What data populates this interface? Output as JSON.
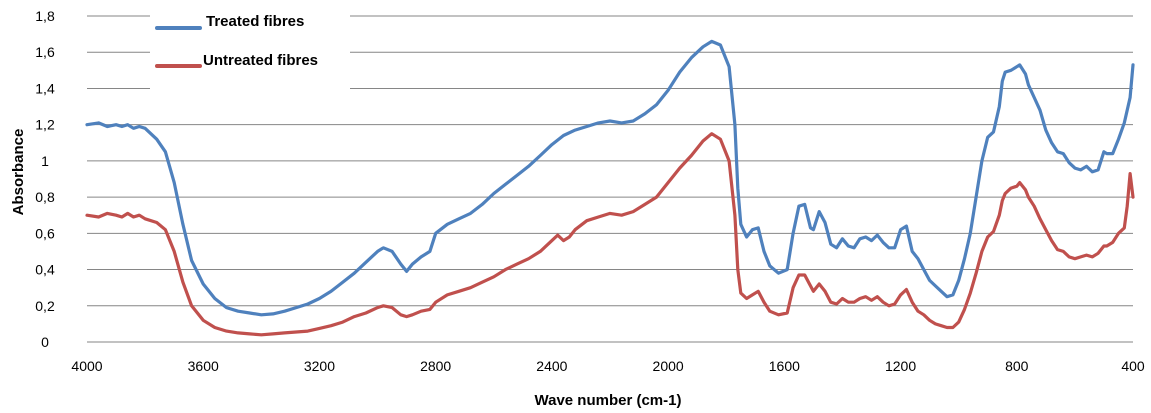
{
  "chart_data": {
    "type": "line",
    "xlabel": "Wave number (cm-1)",
    "ylabel": "Absorbance",
    "xlim": [
      4000,
      400
    ],
    "ylim": [
      0,
      1.8
    ],
    "x_ticks": [
      "4000",
      "3600",
      "3200",
      "2800",
      "2400",
      "2000",
      "1600",
      "1200",
      "800",
      "400"
    ],
    "y_ticks": [
      "0",
      "0,2",
      "0,4",
      "0,6",
      "0,8",
      "1",
      "1,2",
      "1,4",
      "1,6",
      "1,8"
    ],
    "grid": "horizontal",
    "legend_position": "top-left",
    "series": [
      {
        "name": "Treated fibres",
        "color": "#4f81bd",
        "points": [
          [
            4000,
            1.2
          ],
          [
            3960,
            1.21
          ],
          [
            3930,
            1.19
          ],
          [
            3900,
            1.2
          ],
          [
            3880,
            1.19
          ],
          [
            3860,
            1.2
          ],
          [
            3840,
            1.18
          ],
          [
            3820,
            1.19
          ],
          [
            3800,
            1.18
          ],
          [
            3760,
            1.12
          ],
          [
            3730,
            1.05
          ],
          [
            3700,
            0.88
          ],
          [
            3670,
            0.65
          ],
          [
            3640,
            0.45
          ],
          [
            3600,
            0.32
          ],
          [
            3560,
            0.24
          ],
          [
            3520,
            0.19
          ],
          [
            3480,
            0.17
          ],
          [
            3440,
            0.16
          ],
          [
            3400,
            0.15
          ],
          [
            3360,
            0.155
          ],
          [
            3320,
            0.17
          ],
          [
            3280,
            0.19
          ],
          [
            3240,
            0.21
          ],
          [
            3200,
            0.24
          ],
          [
            3160,
            0.28
          ],
          [
            3120,
            0.33
          ],
          [
            3080,
            0.38
          ],
          [
            3040,
            0.44
          ],
          [
            3000,
            0.5
          ],
          [
            2980,
            0.52
          ],
          [
            2950,
            0.5
          ],
          [
            2920,
            0.43
          ],
          [
            2900,
            0.39
          ],
          [
            2880,
            0.43
          ],
          [
            2850,
            0.47
          ],
          [
            2820,
            0.5
          ],
          [
            2800,
            0.6
          ],
          [
            2760,
            0.65
          ],
          [
            2720,
            0.68
          ],
          [
            2680,
            0.71
          ],
          [
            2640,
            0.76
          ],
          [
            2600,
            0.82
          ],
          [
            2560,
            0.87
          ],
          [
            2520,
            0.92
          ],
          [
            2480,
            0.97
          ],
          [
            2440,
            1.03
          ],
          [
            2400,
            1.09
          ],
          [
            2360,
            1.14
          ],
          [
            2320,
            1.17
          ],
          [
            2280,
            1.19
          ],
          [
            2240,
            1.21
          ],
          [
            2200,
            1.22
          ],
          [
            2160,
            1.21
          ],
          [
            2120,
            1.22
          ],
          [
            2080,
            1.26
          ],
          [
            2040,
            1.31
          ],
          [
            2000,
            1.39
          ],
          [
            1960,
            1.49
          ],
          [
            1920,
            1.57
          ],
          [
            1880,
            1.63
          ],
          [
            1850,
            1.66
          ],
          [
            1820,
            1.64
          ],
          [
            1790,
            1.52
          ],
          [
            1770,
            1.2
          ],
          [
            1760,
            0.85
          ],
          [
            1750,
            0.65
          ],
          [
            1730,
            0.58
          ],
          [
            1710,
            0.62
          ],
          [
            1690,
            0.63
          ],
          [
            1670,
            0.5
          ],
          [
            1650,
            0.42
          ],
          [
            1620,
            0.38
          ],
          [
            1590,
            0.4
          ],
          [
            1570,
            0.6
          ],
          [
            1550,
            0.75
          ],
          [
            1530,
            0.76
          ],
          [
            1510,
            0.63
          ],
          [
            1500,
            0.62
          ],
          [
            1480,
            0.72
          ],
          [
            1460,
            0.66
          ],
          [
            1440,
            0.54
          ],
          [
            1420,
            0.52
          ],
          [
            1400,
            0.57
          ],
          [
            1380,
            0.53
          ],
          [
            1360,
            0.52
          ],
          [
            1340,
            0.57
          ],
          [
            1320,
            0.58
          ],
          [
            1300,
            0.56
          ],
          [
            1280,
            0.59
          ],
          [
            1260,
            0.55
          ],
          [
            1240,
            0.52
          ],
          [
            1220,
            0.52
          ],
          [
            1200,
            0.62
          ],
          [
            1180,
            0.64
          ],
          [
            1160,
            0.5
          ],
          [
            1140,
            0.46
          ],
          [
            1120,
            0.4
          ],
          [
            1100,
            0.34
          ],
          [
            1080,
            0.31
          ],
          [
            1060,
            0.28
          ],
          [
            1040,
            0.25
          ],
          [
            1020,
            0.26
          ],
          [
            1000,
            0.34
          ],
          [
            980,
            0.46
          ],
          [
            960,
            0.6
          ],
          [
            940,
            0.8
          ],
          [
            920,
            1.0
          ],
          [
            900,
            1.13
          ],
          [
            880,
            1.16
          ],
          [
            860,
            1.3
          ],
          [
            850,
            1.44
          ],
          [
            840,
            1.49
          ],
          [
            820,
            1.5
          ],
          [
            800,
            1.52
          ],
          [
            790,
            1.53
          ],
          [
            770,
            1.48
          ],
          [
            760,
            1.42
          ],
          [
            740,
            1.35
          ],
          [
            720,
            1.28
          ],
          [
            700,
            1.17
          ],
          [
            680,
            1.1
          ],
          [
            660,
            1.05
          ],
          [
            640,
            1.04
          ],
          [
            620,
            0.99
          ],
          [
            600,
            0.96
          ],
          [
            580,
            0.95
          ],
          [
            560,
            0.97
          ],
          [
            540,
            0.94
          ],
          [
            520,
            0.95
          ],
          [
            500,
            1.05
          ],
          [
            490,
            1.04
          ],
          [
            470,
            1.04
          ],
          [
            450,
            1.12
          ],
          [
            430,
            1.21
          ],
          [
            410,
            1.35
          ],
          [
            400,
            1.53
          ]
        ]
      },
      {
        "name": "Untreated fibres",
        "color": "#c0504d",
        "points": [
          [
            4000,
            0.7
          ],
          [
            3960,
            0.69
          ],
          [
            3930,
            0.71
          ],
          [
            3900,
            0.7
          ],
          [
            3880,
            0.69
          ],
          [
            3860,
            0.71
          ],
          [
            3840,
            0.69
          ],
          [
            3820,
            0.7
          ],
          [
            3800,
            0.68
          ],
          [
            3760,
            0.66
          ],
          [
            3730,
            0.62
          ],
          [
            3700,
            0.5
          ],
          [
            3670,
            0.33
          ],
          [
            3640,
            0.2
          ],
          [
            3600,
            0.12
          ],
          [
            3560,
            0.08
          ],
          [
            3520,
            0.06
          ],
          [
            3480,
            0.05
          ],
          [
            3440,
            0.045
          ],
          [
            3400,
            0.04
          ],
          [
            3360,
            0.045
          ],
          [
            3320,
            0.05
          ],
          [
            3280,
            0.055
          ],
          [
            3240,
            0.06
          ],
          [
            3200,
            0.075
          ],
          [
            3160,
            0.09
          ],
          [
            3120,
            0.11
          ],
          [
            3080,
            0.14
          ],
          [
            3040,
            0.16
          ],
          [
            3000,
            0.19
          ],
          [
            2980,
            0.2
          ],
          [
            2950,
            0.19
          ],
          [
            2920,
            0.15
          ],
          [
            2900,
            0.14
          ],
          [
            2880,
            0.15
          ],
          [
            2850,
            0.17
          ],
          [
            2820,
            0.18
          ],
          [
            2800,
            0.22
          ],
          [
            2760,
            0.26
          ],
          [
            2720,
            0.28
          ],
          [
            2680,
            0.3
          ],
          [
            2640,
            0.33
          ],
          [
            2600,
            0.36
          ],
          [
            2560,
            0.4
          ],
          [
            2520,
            0.43
          ],
          [
            2480,
            0.46
          ],
          [
            2440,
            0.5
          ],
          [
            2400,
            0.56
          ],
          [
            2380,
            0.59
          ],
          [
            2360,
            0.56
          ],
          [
            2340,
            0.58
          ],
          [
            2320,
            0.62
          ],
          [
            2280,
            0.67
          ],
          [
            2240,
            0.69
          ],
          [
            2200,
            0.71
          ],
          [
            2160,
            0.7
          ],
          [
            2120,
            0.72
          ],
          [
            2080,
            0.76
          ],
          [
            2040,
            0.8
          ],
          [
            2000,
            0.88
          ],
          [
            1960,
            0.96
          ],
          [
            1920,
            1.03
          ],
          [
            1880,
            1.11
          ],
          [
            1850,
            1.15
          ],
          [
            1820,
            1.12
          ],
          [
            1790,
            1.0
          ],
          [
            1770,
            0.7
          ],
          [
            1760,
            0.4
          ],
          [
            1750,
            0.27
          ],
          [
            1730,
            0.24
          ],
          [
            1710,
            0.26
          ],
          [
            1690,
            0.28
          ],
          [
            1670,
            0.22
          ],
          [
            1650,
            0.17
          ],
          [
            1620,
            0.15
          ],
          [
            1590,
            0.16
          ],
          [
            1570,
            0.3
          ],
          [
            1550,
            0.37
          ],
          [
            1530,
            0.37
          ],
          [
            1510,
            0.31
          ],
          [
            1500,
            0.28
          ],
          [
            1480,
            0.32
          ],
          [
            1460,
            0.28
          ],
          [
            1440,
            0.22
          ],
          [
            1420,
            0.21
          ],
          [
            1400,
            0.24
          ],
          [
            1380,
            0.22
          ],
          [
            1360,
            0.22
          ],
          [
            1340,
            0.24
          ],
          [
            1320,
            0.25
          ],
          [
            1300,
            0.23
          ],
          [
            1280,
            0.25
          ],
          [
            1260,
            0.22
          ],
          [
            1240,
            0.2
          ],
          [
            1220,
            0.21
          ],
          [
            1200,
            0.26
          ],
          [
            1180,
            0.29
          ],
          [
            1160,
            0.22
          ],
          [
            1140,
            0.17
          ],
          [
            1120,
            0.15
          ],
          [
            1100,
            0.12
          ],
          [
            1080,
            0.1
          ],
          [
            1060,
            0.09
          ],
          [
            1040,
            0.08
          ],
          [
            1020,
            0.08
          ],
          [
            1000,
            0.11
          ],
          [
            980,
            0.18
          ],
          [
            960,
            0.27
          ],
          [
            940,
            0.38
          ],
          [
            920,
            0.5
          ],
          [
            900,
            0.58
          ],
          [
            880,
            0.61
          ],
          [
            860,
            0.7
          ],
          [
            850,
            0.78
          ],
          [
            840,
            0.82
          ],
          [
            820,
            0.85
          ],
          [
            800,
            0.86
          ],
          [
            790,
            0.88
          ],
          [
            770,
            0.84
          ],
          [
            760,
            0.8
          ],
          [
            740,
            0.75
          ],
          [
            720,
            0.68
          ],
          [
            700,
            0.62
          ],
          [
            680,
            0.56
          ],
          [
            660,
            0.51
          ],
          [
            640,
            0.5
          ],
          [
            620,
            0.47
          ],
          [
            600,
            0.46
          ],
          [
            580,
            0.47
          ],
          [
            560,
            0.48
          ],
          [
            540,
            0.47
          ],
          [
            520,
            0.49
          ],
          [
            500,
            0.53
          ],
          [
            490,
            0.53
          ],
          [
            470,
            0.55
          ],
          [
            450,
            0.6
          ],
          [
            430,
            0.63
          ],
          [
            420,
            0.75
          ],
          [
            410,
            0.93
          ],
          [
            400,
            0.8
          ]
        ]
      }
    ]
  }
}
